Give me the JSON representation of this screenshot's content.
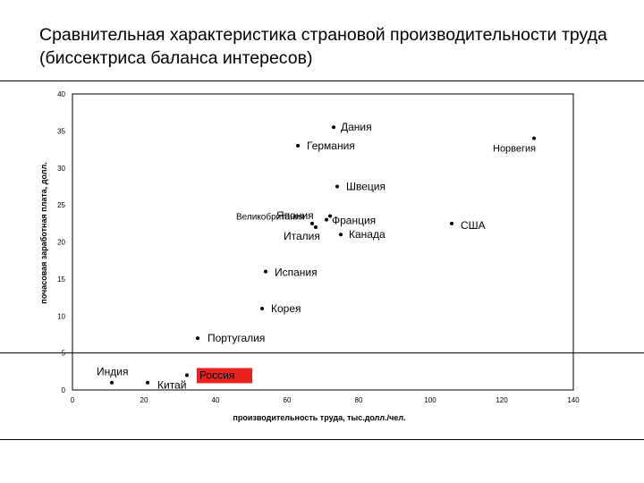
{
  "slide": {
    "title": "Сравнительная характеристика страновой производительности труда (биссектриса баланса интересов)"
  },
  "chart_data": {
    "type": "scatter",
    "xlabel": "производительность труда, тыс.долл./чел.",
    "ylabel": "почасовая заработная плата, долл.",
    "xlim": [
      0,
      140
    ],
    "ylim": [
      0,
      40
    ],
    "xticks": [
      "0",
      "20",
      "40",
      "60",
      "80",
      "100",
      "120",
      "140"
    ],
    "yticks": [
      "0",
      "5",
      "10",
      "15",
      "20",
      "25",
      "30",
      "35",
      "40"
    ],
    "grid": false,
    "reference_line_y": 5,
    "points": [
      {
        "name": "Дания",
        "x": 73,
        "y": 35.5
      },
      {
        "name": "Германия",
        "x": 63,
        "y": 33
      },
      {
        "name": "Норвегия",
        "x": 129,
        "y": 34
      },
      {
        "name": "Швеция",
        "x": 74,
        "y": 27.5
      },
      {
        "name": "Великобритания",
        "x": 72,
        "y": 23.5
      },
      {
        "name": "Япония",
        "x": 67,
        "y": 22.5
      },
      {
        "name": "Франция",
        "x": 71,
        "y": 23
      },
      {
        "name": "США",
        "x": 106,
        "y": 22.5
      },
      {
        "name": "Италия",
        "x": 68,
        "y": 22
      },
      {
        "name": "Канада",
        "x": 75,
        "y": 21
      },
      {
        "name": "Испания",
        "x": 54,
        "y": 16
      },
      {
        "name": "Корея",
        "x": 53,
        "y": 11
      },
      {
        "name": "Португалия",
        "x": 35,
        "y": 7
      },
      {
        "name": "Индия",
        "x": 11,
        "y": 1
      },
      {
        "name": "Китай",
        "x": 21,
        "y": 1
      },
      {
        "name": "Россия",
        "x": 32,
        "y": 2,
        "highlight": true
      }
    ],
    "highlight_color": "#e8231f"
  }
}
